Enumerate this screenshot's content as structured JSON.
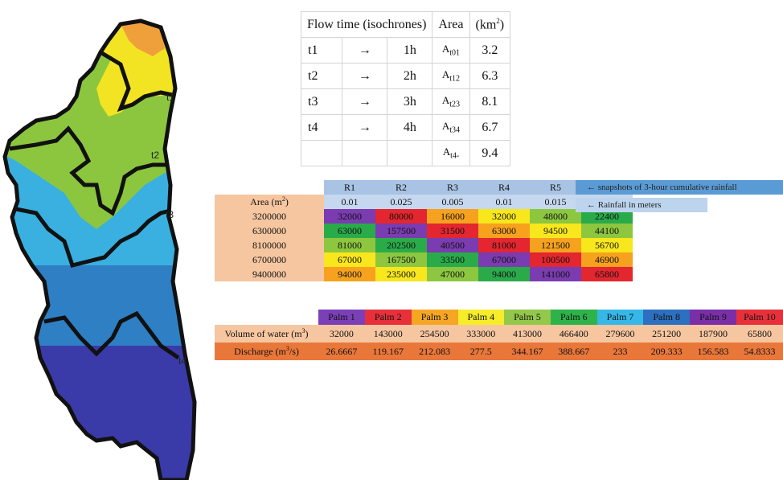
{
  "isochrone_labels": [
    "t1",
    "t2",
    "t3",
    "t4"
  ],
  "isochrone_table": {
    "headers": [
      "Flow time (isochrones)",
      "Area",
      "(km2)"
    ],
    "rows": [
      {
        "t": "t1",
        "arrow": "→",
        "h": "1h",
        "area_label": "At01",
        "km2": "3.2"
      },
      {
        "t": "t2",
        "arrow": "→",
        "h": "2h",
        "area_label": "At12",
        "km2": "6.3"
      },
      {
        "t": "t3",
        "arrow": "→",
        "h": "3h",
        "area_label": "At23",
        "km2": "8.1"
      },
      {
        "t": "t4",
        "arrow": "→",
        "h": "4h",
        "area_label": "At34",
        "km2": "6.7"
      },
      {
        "t": "",
        "arrow": "",
        "h": "",
        "area_label": "At4-",
        "km2": "9.4"
      }
    ]
  },
  "rainfall_table": {
    "area_header": "Area (m2)",
    "columns": [
      "R1",
      "R2",
      "R3",
      "R4",
      "R5",
      "R6"
    ],
    "rainfall_m": [
      "0.01",
      "0.025",
      "0.005",
      "0.01",
      "0.015",
      "0.007"
    ],
    "rows": [
      {
        "area": "3200000",
        "values": [
          "32000",
          "80000",
          "16000",
          "32000",
          "48000",
          "22400"
        ]
      },
      {
        "area": "6300000",
        "values": [
          "63000",
          "157500",
          "31500",
          "63000",
          "94500",
          "44100"
        ]
      },
      {
        "area": "8100000",
        "values": [
          "81000",
          "202500",
          "40500",
          "81000",
          "121500",
          "56700"
        ]
      },
      {
        "area": "6700000",
        "values": [
          "67000",
          "167500",
          "33500",
          "67000",
          "100500",
          "46900"
        ]
      },
      {
        "area": "9400000",
        "values": [
          "94000",
          "235000",
          "47000",
          "94000",
          "141000",
          "65800"
        ]
      }
    ],
    "note_snapshots": "← snapshots of 3-hour cumulative rainfall",
    "note_rainfall": "← Rainfall in meters"
  },
  "palm_table": {
    "palms": [
      "Palm 1",
      "Palm 2",
      "Palm 3",
      "Palm 4",
      "Palm 5",
      "Palm 6",
      "Palm 7",
      "Palm 8",
      "Palm 9",
      "Palm 10"
    ],
    "palm_colors": [
      "#7b3fb8",
      "#e8303a",
      "#f5a623",
      "#f7ec2a",
      "#93c84a",
      "#2db34a",
      "#35b8e8",
      "#2d6fc0",
      "#7a2fa8",
      "#e8303a"
    ],
    "volume_label": "Volume of water (m3)",
    "volumes": [
      "32000",
      "143000",
      "254500",
      "333000",
      "413000",
      "466400",
      "279600",
      "251200",
      "187900",
      "65800"
    ],
    "discharge_label": "Discharge (m3/s)",
    "discharges": [
      "26.6667",
      "119.167",
      "212.083",
      "277.5",
      "344.167",
      "388.667",
      "233",
      "209.333",
      "156.583",
      "54.8333"
    ]
  },
  "cell_colors": {
    "purple": "#7a3cb0",
    "red": "#e3262f",
    "orange": "#f6a21e",
    "yellow": "#f8e71c",
    "lightgreen": "#8dc63f",
    "green": "#2aab4a"
  }
}
